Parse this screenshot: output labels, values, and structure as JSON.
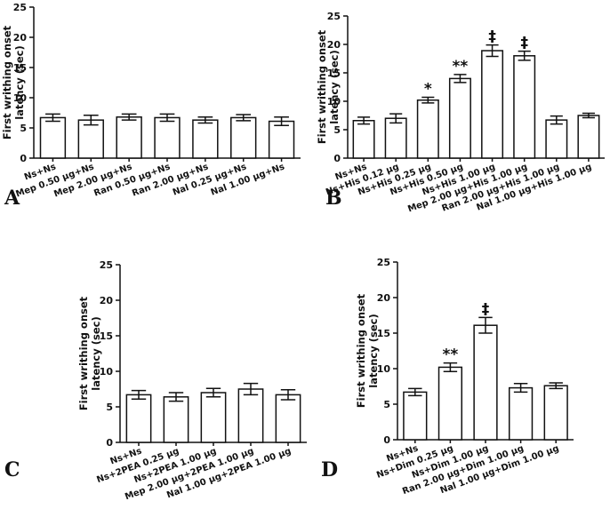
{
  "chart_data": [
    {
      "type": "bar",
      "panel_label": "A",
      "ylabel": [
        "First writhing onset",
        "latency (sec)"
      ],
      "categories": [
        "Ns+Ns",
        "Mep 0.50 μg+Ns",
        "Mep 2.00 μg+Ns",
        "Ran 0.50 μg+Ns",
        "Ran 2.00 μg+Ns",
        "Nal 0.25 μg+Ns",
        "Nal 1.00 μg+Ns"
      ],
      "values": [
        6.7,
        6.3,
        6.8,
        6.7,
        6.3,
        6.7,
        6.1
      ],
      "errors": [
        0.6,
        0.8,
        0.5,
        0.6,
        0.5,
        0.5,
        0.7
      ],
      "ylim": [
        0,
        25
      ],
      "yticks": [
        0,
        5,
        10,
        15,
        20,
        25
      ],
      "color": "#ffffff"
    },
    {
      "type": "bar",
      "panel_label": "B",
      "ylabel": [
        "First writhing onset",
        "latency (sec)"
      ],
      "categories": [
        "Ns+Ns",
        "Ns+His 0.12 μg",
        "Ns+His 0.25 μg",
        "Ns+His 0.50 μg",
        "Ns+His 1.00 μg",
        "Mep 2.00 μg+His 1.00 μg",
        "Ran 2.00 μg+His 1.00 μg",
        "Nal 1.00 μg+His 1.00 μg"
      ],
      "values": [
        6.6,
        7.0,
        10.2,
        14.0,
        18.9,
        18.0,
        6.7,
        7.5
      ],
      "errors": [
        0.6,
        0.8,
        0.5,
        0.7,
        1.0,
        0.8,
        0.7,
        0.4
      ],
      "significance": [
        null,
        null,
        "*",
        "**",
        "‡",
        "‡",
        null,
        null
      ],
      "ylim": [
        0,
        25
      ],
      "yticks": [
        0,
        5,
        10,
        15,
        20,
        25
      ],
      "color": "#ffffff"
    },
    {
      "type": "bar",
      "panel_label": "C",
      "ylabel": [
        "First writhing onset",
        "latency (sec)"
      ],
      "categories": [
        "Ns+Ns",
        "Ns+2PEA 0.25 μg",
        "Ns+2PEA 1.00 μg",
        "Mep 2.00 μg+2PEA 1.00 μg",
        "Nal 1.00 μg+2PEA 1.00 μg"
      ],
      "values": [
        6.7,
        6.4,
        7.0,
        7.5,
        6.7
      ],
      "errors": [
        0.6,
        0.6,
        0.6,
        0.8,
        0.7
      ],
      "ylim": [
        0,
        25
      ],
      "yticks": [
        0,
        5,
        10,
        15,
        20,
        25
      ],
      "color": "#ffffff"
    },
    {
      "type": "bar",
      "panel_label": "D",
      "ylabel": [
        "First writhing onset",
        "latency (sec)"
      ],
      "categories": [
        "Ns+Ns",
        "Ns+Dim 0.25 μg",
        "Ns+Dim 1.00 μg",
        "Ran 2.00 μg+Dim 1.00 μg",
        "Nal 1.00 μg+Dim 1.00 μg"
      ],
      "values": [
        6.7,
        10.2,
        16.1,
        7.3,
        7.6
      ],
      "errors": [
        0.5,
        0.6,
        1.1,
        0.6,
        0.4
      ],
      "significance": [
        null,
        "**",
        "‡",
        null,
        null
      ],
      "ylim": [
        0,
        25
      ],
      "yticks": [
        0,
        5,
        10,
        15,
        20,
        25
      ],
      "color": "#ffffff"
    }
  ]
}
